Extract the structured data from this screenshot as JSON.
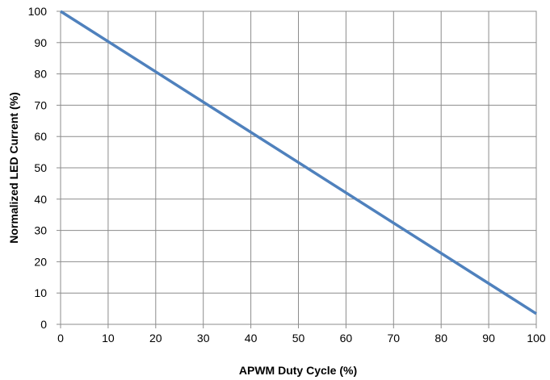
{
  "chart_data": {
    "type": "line",
    "title": "",
    "xlabel": "APWM Duty Cycle (%)",
    "ylabel": "Normalized LED Current (%)",
    "xlim": [
      0,
      100
    ],
    "ylim": [
      0,
      100
    ],
    "x_ticks": [
      "0",
      "10",
      "20",
      "30",
      "40",
      "50",
      "60",
      "70",
      "80",
      "90",
      "100"
    ],
    "y_ticks": [
      "0",
      "10",
      "20",
      "30",
      "40",
      "50",
      "60",
      "70",
      "80",
      "90",
      "100"
    ],
    "grid": true,
    "legend": "none",
    "series": [
      {
        "x": [
          0,
          100
        ],
        "y": [
          100,
          3.4
        ],
        "color": "#4f81bd"
      }
    ]
  }
}
